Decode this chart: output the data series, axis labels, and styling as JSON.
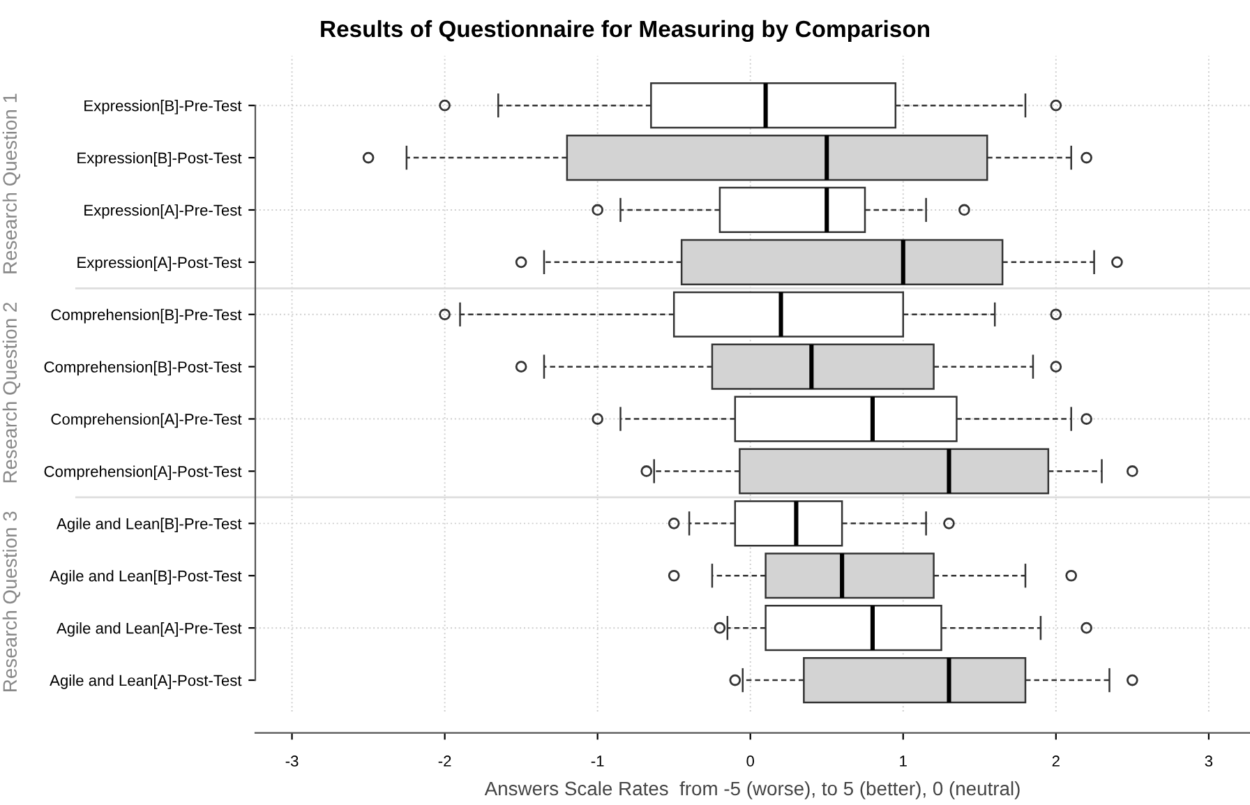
{
  "chart_data": {
    "type": "box",
    "orientation": "horizontal",
    "title": "Results of Questionnaire for Measuring by Comparison",
    "xlabel": "Answers Scale Rates  from -5 (worse), to 5 (better), 0 (neutral)",
    "categories": [
      "Expression[B]-Pre-Test",
      "Expression[B]-Post-Test",
      "Expression[A]-Pre-Test",
      "Expression[A]-Post-Test",
      "Comprehension[B]-Pre-Test",
      "Comprehension[B]-Post-Test",
      "Comprehension[A]-Pre-Test",
      "Comprehension[A]-Post-Test",
      "Agile and Lean[B]-Pre-Test",
      "Agile and Lean[B]-Post-Test",
      "Agile and Lean[A]-Pre-Test",
      "Agile and Lean[A]-Post-Test"
    ],
    "colors": [
      "#ffffff",
      "#d3d3d3",
      "#ffffff",
      "#d3d3d3",
      "#ffffff",
      "#d3d3d3",
      "#ffffff",
      "#d3d3d3",
      "#ffffff",
      "#d3d3d3",
      "#ffffff",
      "#d3d3d3"
    ],
    "boxes": [
      {
        "low": -1.65,
        "q1": -0.65,
        "median": 0.1,
        "q3": 0.95,
        "high": 1.8,
        "outliers": [
          -2,
          2
        ]
      },
      {
        "low": -2.25,
        "q1": -1.2,
        "median": 0.5,
        "q3": 1.55,
        "high": 2.1,
        "outliers": [
          -2.5,
          2.2
        ]
      },
      {
        "low": -0.85,
        "q1": -0.2,
        "median": 0.5,
        "q3": 0.75,
        "high": 1.15,
        "outliers": [
          -1,
          1.4
        ]
      },
      {
        "low": -1.35,
        "q1": -0.45,
        "median": 1.0,
        "q3": 1.65,
        "high": 2.25,
        "outliers": [
          -1.5,
          2.4
        ]
      },
      {
        "low": -1.9,
        "q1": -0.5,
        "median": 0.2,
        "q3": 1.0,
        "high": 1.6,
        "outliers": [
          -2,
          2
        ]
      },
      {
        "low": -1.35,
        "q1": -0.25,
        "median": 0.4,
        "q3": 1.2,
        "high": 1.85,
        "outliers": [
          -1.5,
          2
        ]
      },
      {
        "low": -0.85,
        "q1": -0.1,
        "median": 0.8,
        "q3": 1.35,
        "high": 2.1,
        "outliers": [
          -1,
          2.2
        ]
      },
      {
        "low": -0.63,
        "q1": -0.07,
        "median": 1.3,
        "q3": 1.95,
        "high": 2.3,
        "outliers": [
          -0.68,
          2.5
        ]
      },
      {
        "low": -0.4,
        "q1": -0.1,
        "median": 0.3,
        "q3": 0.6,
        "high": 1.15,
        "outliers": [
          -0.5,
          1.3
        ]
      },
      {
        "low": -0.25,
        "q1": 0.1,
        "median": 0.6,
        "q3": 1.2,
        "high": 1.8,
        "outliers": [
          -0.5,
          2.1
        ]
      },
      {
        "low": -0.15,
        "q1": 0.1,
        "median": 0.8,
        "q3": 1.25,
        "high": 1.9,
        "outliers": [
          -0.2,
          2.2
        ]
      },
      {
        "low": -0.05,
        "q1": 0.35,
        "median": 1.3,
        "q3": 1.8,
        "high": 2.35,
        "outliers": [
          -0.1,
          2.5
        ]
      }
    ],
    "annotations": [
      "Research Question 1",
      "Research Question 2",
      "Research Question 3"
    ],
    "xlim": [
      -3.24,
      3.27
    ],
    "xticks": [
      -3,
      -2,
      -1,
      0,
      1,
      2,
      3
    ],
    "grid": true
  }
}
